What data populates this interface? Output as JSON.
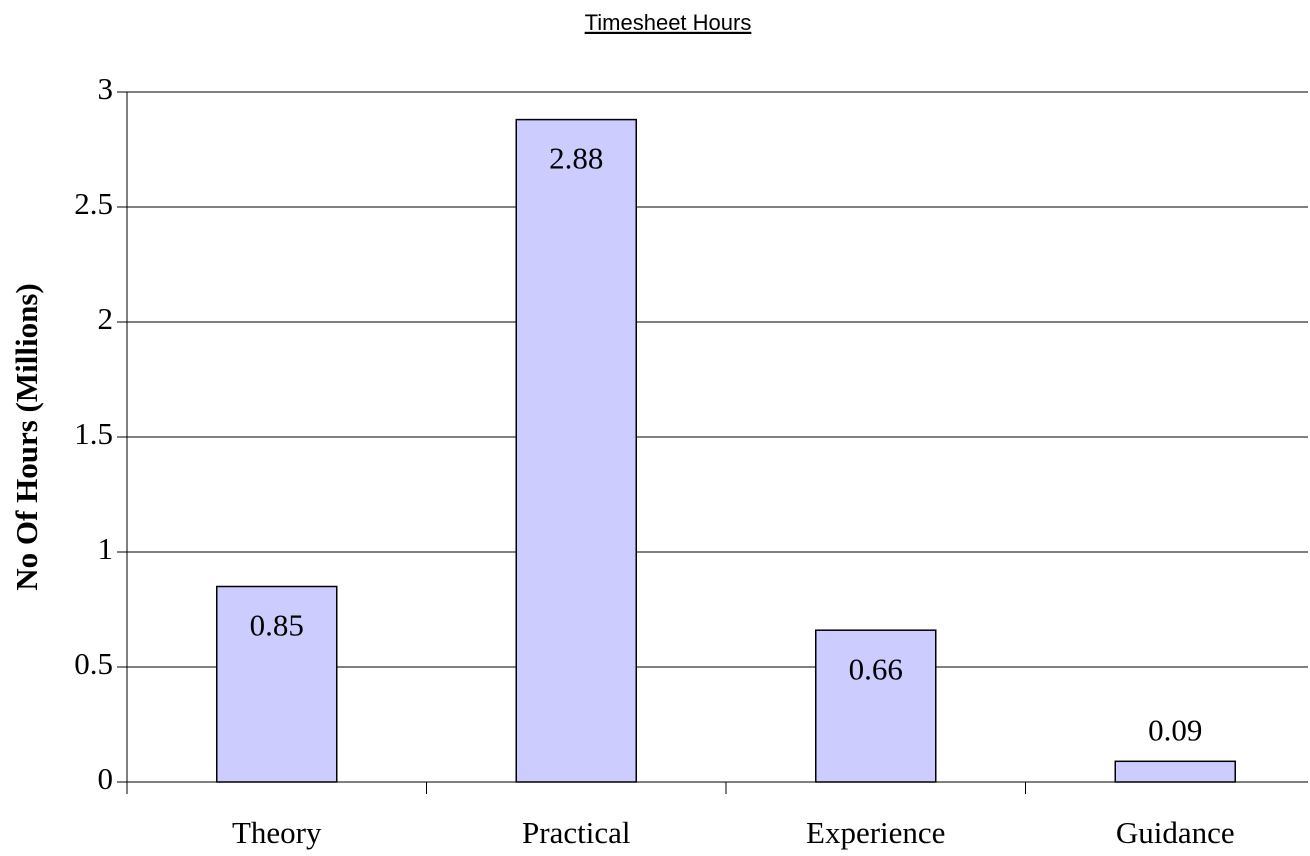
{
  "chart_data": {
    "type": "bar",
    "title": "Timesheet Hours",
    "ylabel": "No Of Hours (Millions)",
    "categories": [
      "Theory",
      "Practical",
      "Experience",
      "Guidance"
    ],
    "values": [
      0.85,
      2.88,
      0.66,
      0.09
    ],
    "color": "#ccccff",
    "ylim": [
      0,
      3
    ],
    "yticks": [
      0,
      0.5,
      1,
      1.5,
      2,
      2.5,
      3
    ],
    "grid": true
  }
}
